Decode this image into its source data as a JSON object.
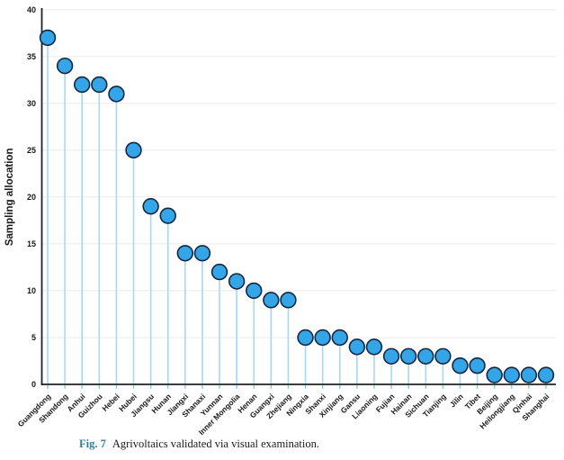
{
  "figure_caption": {
    "label": "Fig. 7",
    "text": "Agrivoltaics validated via visual examination."
  },
  "chart_data": {
    "type": "scatter",
    "variant": "lollipop-stem-plot",
    "title": "",
    "xlabel": "",
    "ylabel": "Sampling allocation",
    "ylim": [
      0,
      40
    ],
    "yticks": [
      0,
      5,
      10,
      15,
      20,
      25,
      30,
      35,
      40
    ],
    "grid": true,
    "legend": "none",
    "categories": [
      "Guangdong",
      "Shandong",
      "Anhui",
      "Guizhou",
      "Hebei",
      "Hubei",
      "Jiangsu",
      "Hunan",
      "Jiangxi",
      "Shanaxi",
      "Yunnan",
      "Inner Mongolia",
      "Henan",
      "Guangxi",
      "Zhejiang",
      "Ningxia",
      "Shanxi",
      "Xinjiang",
      "Gansu",
      "Liaoning",
      "Fujian",
      "Hainan",
      "Sichuan",
      "Tianjing",
      "Jilin",
      "Tibet",
      "Beijing",
      "Heilongjiang",
      "Qinhai",
      "Shanghai"
    ],
    "values": [
      37,
      34,
      32,
      32,
      31,
      25,
      19,
      18,
      14,
      14,
      12,
      11,
      10,
      9,
      9,
      5,
      5,
      5,
      4,
      4,
      3,
      3,
      3,
      3,
      2,
      2,
      1,
      1,
      1,
      1
    ],
    "colors": {
      "marker_fill": "#32a6e8",
      "marker_stroke": "#15273f",
      "stem": "#a5d9f5",
      "grid": "#eaeaea",
      "axis": "#222222",
      "x_tick": "#7fcbef",
      "text": "#1a1a1a",
      "caption_accent": "#2f7e9f"
    }
  }
}
